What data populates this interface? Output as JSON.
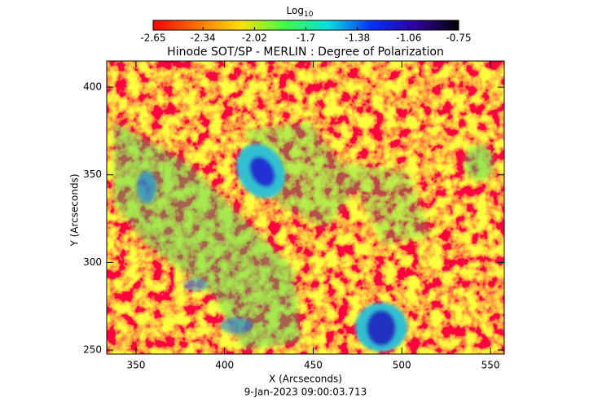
{
  "chart_data": {
    "type": "heatmap",
    "title": "Hinode SOT/SP - MERLIN : Degree of Polarization",
    "colorbar_label": "Log",
    "colorbar_label_sub": "10",
    "colorbar_lim": [
      -2.65,
      -0.75
    ],
    "colorbar_ticks": [
      -2.65,
      -2.34,
      -2.02,
      -1.7,
      -1.38,
      -1.06,
      -0.75
    ],
    "colorbar_colors": [
      "#ff0000",
      "#ff7000",
      "#ffe000",
      "#40ff40",
      "#00e0e0",
      "#0030ff",
      "#3000a0",
      "#000000"
    ],
    "x_label": "X (Arcseconds)",
    "y_label": "Y (Arcseconds)",
    "xlim": [
      333.5,
      557.8
    ],
    "ylim": [
      247.7,
      414.9
    ],
    "xticks": [
      350,
      400,
      450,
      500,
      550
    ],
    "yticks": [
      250,
      300,
      350,
      400
    ],
    "timestamp": "9-Jan-2023 09:00:03.713"
  }
}
